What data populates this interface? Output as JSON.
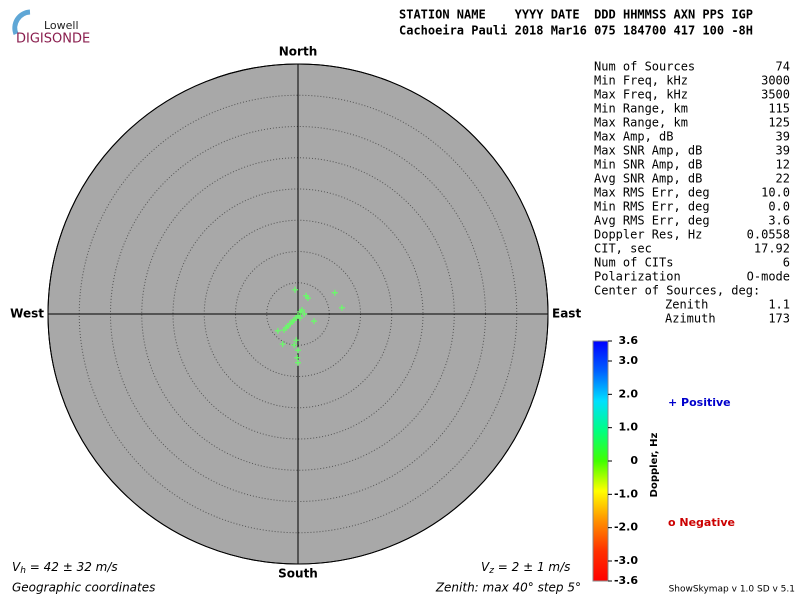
{
  "logo": {
    "top": "Lowell",
    "bottom": "DIGISONDE"
  },
  "header": {
    "columns": "STATION NAME    YYYY DATE  DDD HHMMSS AXN PPS IGP",
    "values": "Cachoeira Pauli 2018 Mar16 075 184700 417 100 -8H"
  },
  "chart_data": {
    "type": "polar-scatter",
    "directions": {
      "north": "North",
      "south": "South",
      "east": "East",
      "west": "West"
    },
    "rlim": [
      0,
      40
    ],
    "rticks": [
      5,
      10,
      15,
      20,
      25,
      30,
      35,
      40
    ],
    "series": [
      {
        "name": "Sources",
        "color": "#66ff66",
        "zenith": [
          0.3,
          0.7,
          1.2,
          1.6,
          2.0,
          2.5,
          2.9,
          3.4,
          4.2,
          0.5,
          0.9,
          3.2,
          3.0,
          3.9,
          6.8,
          7.1,
          2.8,
          4.2,
          5.8,
          7.0,
          7.8,
          5.0,
          5.4,
          0.7,
          1.0
        ],
        "azimuth": [
          180,
          207,
          214,
          217,
          219,
          220,
          221,
          221,
          230,
          45,
          45,
          24,
          32,
          353,
          60,
          82,
          114,
          184,
          180,
          181,
          180,
          187,
          207,
          153,
          90
        ]
      }
    ],
    "colorbar": {
      "label": "Doppler, Hz",
      "clim": [
        -3.6,
        3.6
      ],
      "colors": [
        "#0000ff",
        "#0060ff",
        "#00e0ff",
        "#00ff80",
        "#40ff00",
        "#ffff00",
        "#ff9000",
        "#ff3000",
        "#ff0000"
      ],
      "ticks": [
        3.6,
        {
          "value": 3,
          "label": "3.0"
        },
        {
          "value": 2,
          "label": "2.0"
        },
        {
          "value": 1,
          "label": "1.0"
        },
        0,
        {
          "value": -1,
          "label": "-1.0"
        },
        {
          "value": -2,
          "label": "-2.0"
        },
        {
          "value": -3,
          "label": "-3.0"
        },
        -3.6
      ]
    },
    "legend": [
      {
        "name": "+ Positive",
        "color": "#0000cc"
      },
      {
        "name": "o Negative",
        "color": "#cc0000"
      }
    ]
  },
  "stats": [
    [
      "Num of Sources",
      "74"
    ],
    [
      "Min Freq, kHz",
      "3000"
    ],
    [
      "Max Freq, kHz",
      "3500"
    ],
    [
      "Min Range, km",
      "115"
    ],
    [
      "Max Range, km",
      "125"
    ],
    [
      "Max Amp, dB",
      "39"
    ],
    [
      "Max SNR Amp, dB",
      "39"
    ],
    [
      "Min SNR Amp, dB",
      "12"
    ],
    [
      "Avg SNR Amp, dB",
      "22"
    ],
    [
      "Max RMS Err, deg",
      "10.0"
    ],
    [
      "Min RMS Err, deg",
      "0.0"
    ],
    [
      "Avg RMS Err, deg",
      "3.6"
    ],
    [
      "Doppler Res, Hz",
      "0.0558"
    ],
    [
      "CIT, sec",
      "17.92"
    ],
    [
      "Num of CITs",
      "6"
    ],
    [
      "Polarization",
      "O-mode"
    ],
    [
      "Center of Sources, deg:",
      ""
    ]
  ],
  "center": [
    [
      "Zenith",
      "1.1"
    ],
    [
      "Azimuth",
      "173"
    ]
  ],
  "footer": {
    "vh_symbol": "V",
    "vh_sub": "h",
    "vh_text": " = 42 ± 32 m/s",
    "vz_symbol": "V",
    "vz_sub": "z",
    "vz_text": " = 2 ± 1 m/s",
    "coords": "Geographic coordinates",
    "zenith": "Zenith: max 40°  step 5°",
    "version": "ShowSkymap v 1.0  SD v 5.1"
  }
}
